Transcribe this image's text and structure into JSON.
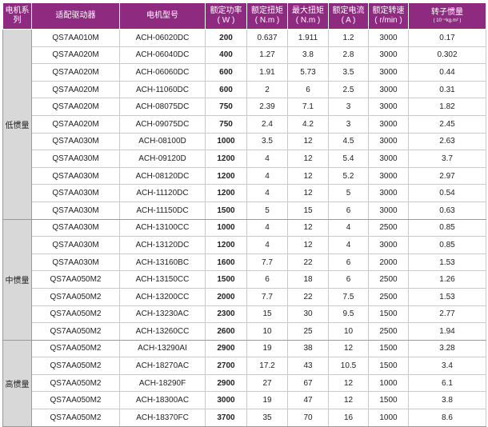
{
  "header": {
    "series": "电机系列",
    "driver": "适配驱动器",
    "model": "电机型号",
    "power": "额定功率",
    "power_unit": "( W )",
    "torque": "额定扭矩",
    "torque_unit": "( N.m )",
    "max_torque": "最大扭矩",
    "max_torque_unit": "( N.m )",
    "current": "额定电流",
    "current_unit": "( A )",
    "speed": "额定转速",
    "speed_unit": "( r/min )",
    "inertia": "转子惯量",
    "inertia_unit": "( 10⁻⁴kg.m² )"
  },
  "groups": [
    {
      "name": "低惯量",
      "rows": [
        {
          "driver": "QS7AA010M",
          "model": "ACH-06020DC",
          "power": "200",
          "torque": "0.637",
          "max_torque": "1.911",
          "current": "1.2",
          "speed": "3000",
          "inertia": "0.17"
        },
        {
          "driver": "QS7AA020M",
          "model": "ACH-06040DC",
          "power": "400",
          "torque": "1.27",
          "max_torque": "3.8",
          "current": "2.8",
          "speed": "3000",
          "inertia": "0.302"
        },
        {
          "driver": "QS7AA020M",
          "model": "ACH-06060DC",
          "power": "600",
          "torque": "1.91",
          "max_torque": "5.73",
          "current": "3.5",
          "speed": "3000",
          "inertia": "0.44"
        },
        {
          "driver": "QS7AA020M",
          "model": "ACH-11060DC",
          "power": "600",
          "torque": "2",
          "max_torque": "6",
          "current": "2.5",
          "speed": "3000",
          "inertia": "0.31"
        },
        {
          "driver": "QS7AA020M",
          "model": "ACH-08075DC",
          "power": "750",
          "torque": "2.39",
          "max_torque": "7.1",
          "current": "3",
          "speed": "3000",
          "inertia": "1.82"
        },
        {
          "driver": "QS7AA020M",
          "model": "ACH-09075DC",
          "power": "750",
          "torque": "2.4",
          "max_torque": "4.2",
          "current": "3",
          "speed": "3000",
          "inertia": "2.45"
        },
        {
          "driver": "QS7AA030M",
          "model": "ACH-08100D",
          "power": "1000",
          "torque": "3.5",
          "max_torque": "12",
          "current": "4.5",
          "speed": "3000",
          "inertia": "2.63"
        },
        {
          "driver": "QS7AA030M",
          "model": "ACH-09120D",
          "power": "1200",
          "torque": "4",
          "max_torque": "12",
          "current": "5.4",
          "speed": "3000",
          "inertia": "3.7"
        },
        {
          "driver": "QS7AA030M",
          "model": "ACH-08120DC",
          "power": "1200",
          "torque": "4",
          "max_torque": "12",
          "current": "5.2",
          "speed": "3000",
          "inertia": "2.97"
        },
        {
          "driver": "QS7AA030M",
          "model": "ACH-11120DC",
          "power": "1200",
          "torque": "4",
          "max_torque": "12",
          "current": "5",
          "speed": "3000",
          "inertia": "0.54"
        },
        {
          "driver": "QS7AA030M",
          "model": "ACH-11150DC",
          "power": "1500",
          "torque": "5",
          "max_torque": "15",
          "current": "6",
          "speed": "3000",
          "inertia": "0.63"
        }
      ]
    },
    {
      "name": "中惯量",
      "rows": [
        {
          "driver": "QS7AA030M",
          "model": "ACH-13100CC",
          "power": "1000",
          "torque": "4",
          "max_torque": "12",
          "current": "4",
          "speed": "2500",
          "inertia": "0.85"
        },
        {
          "driver": "QS7AA030M",
          "model": "ACH-13120DC",
          "power": "1200",
          "torque": "4",
          "max_torque": "12",
          "current": "4",
          "speed": "3000",
          "inertia": "0.85"
        },
        {
          "driver": "QS7AA030M",
          "model": "ACH-13160BC",
          "power": "1600",
          "torque": "7.7",
          "max_torque": "22",
          "current": "6",
          "speed": "2000",
          "inertia": "1.53"
        },
        {
          "driver": "QS7AA050M2",
          "model": "ACH-13150CC",
          "power": "1500",
          "torque": "6",
          "max_torque": "18",
          "current": "6",
          "speed": "2500",
          "inertia": "1.26"
        },
        {
          "driver": "QS7AA050M2",
          "model": "ACH-13200CC",
          "power": "2000",
          "torque": "7.7",
          "max_torque": "22",
          "current": "7.5",
          "speed": "2500",
          "inertia": "1.53"
        },
        {
          "driver": "QS7AA050M2",
          "model": "ACH-13230AC",
          "power": "2300",
          "torque": "15",
          "max_torque": "30",
          "current": "9.5",
          "speed": "1500",
          "inertia": "2.77"
        },
        {
          "driver": "QS7AA050M2",
          "model": "ACH-13260CC",
          "power": "2600",
          "torque": "10",
          "max_torque": "25",
          "current": "10",
          "speed": "2500",
          "inertia": "1.94"
        }
      ]
    },
    {
      "name": "高惯量",
      "rows": [
        {
          "driver": "QS7AA050M2",
          "model": "ACH-13290AI",
          "power": "2900",
          "torque": "19",
          "max_torque": "38",
          "current": "12",
          "speed": "1500",
          "inertia": "3.28"
        },
        {
          "driver": "QS7AA050M2",
          "model": "ACH-18270AC",
          "power": "2700",
          "torque": "17.2",
          "max_torque": "43",
          "current": "10.5",
          "speed": "1500",
          "inertia": "3.4"
        },
        {
          "driver": "QS7AA050M2",
          "model": "ACH-18290F",
          "power": "2900",
          "torque": "27",
          "max_torque": "67",
          "current": "12",
          "speed": "1000",
          "inertia": "6.1"
        },
        {
          "driver": "QS7AA050M2",
          "model": "ACH-18300AC",
          "power": "3000",
          "torque": "19",
          "max_torque": "47",
          "current": "12",
          "speed": "1500",
          "inertia": "3.8"
        },
        {
          "driver": "QS7AA050M2",
          "model": "ACH-18370FC",
          "power": "3700",
          "torque": "35",
          "max_torque": "70",
          "current": "16",
          "speed": "1000",
          "inertia": "8.6"
        }
      ]
    }
  ]
}
